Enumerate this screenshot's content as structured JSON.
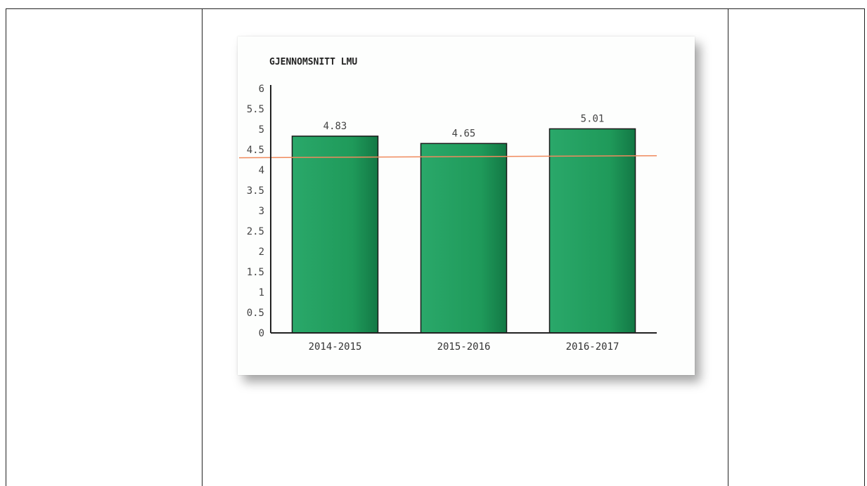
{
  "chart_data": {
    "type": "bar",
    "title": "GJENNOMSNITT LMU",
    "categories": [
      "2014-2015",
      "2015-2016",
      "2016-2017"
    ],
    "values": [
      4.83,
      4.65,
      5.01
    ],
    "data_labels": [
      "4.83",
      "4.65",
      "5.01"
    ],
    "y_ticks": [
      "0",
      "0.5",
      "1",
      "1.5",
      "2",
      "2.5",
      "3",
      "3.5",
      "4",
      "4.5",
      "5",
      "5.5",
      "6"
    ],
    "ylim": [
      0,
      6
    ],
    "reference_line": {
      "from": 4.3,
      "to": 4.35
    },
    "colors": {
      "bar": "#1f9a5a",
      "bar_edge": "#1a1a1a",
      "reference_line": "#f08a5d",
      "axis": "#222222"
    },
    "grid": false,
    "legend": "none"
  }
}
